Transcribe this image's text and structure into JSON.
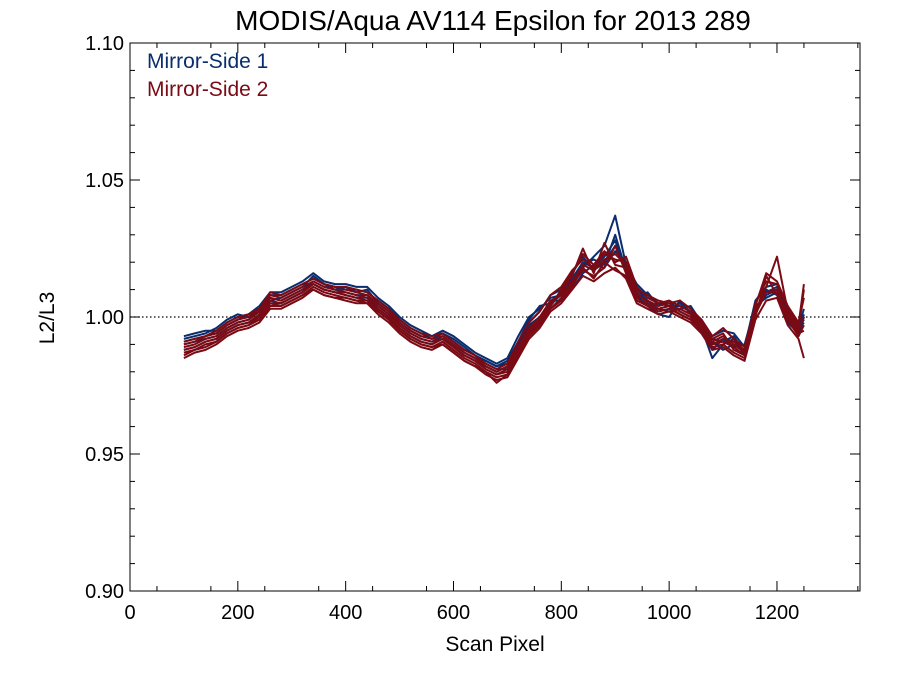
{
  "chart_data": {
    "type": "line",
    "title": "MODIS/Aqua AV114 Epsilon for 2013 289",
    "xlabel": "Scan Pixel",
    "ylabel": "L2/L3",
    "xlim": [
      0,
      1354
    ],
    "ylim": [
      0.9,
      1.1
    ],
    "x_ticks": [
      0,
      200,
      400,
      600,
      800,
      1000,
      1200
    ],
    "x_tick_labels": [
      "0",
      "200",
      "400",
      "600",
      "800",
      "1000",
      "1200"
    ],
    "y_ticks": [
      0.9,
      0.95,
      1.0,
      1.05,
      1.1
    ],
    "y_tick_labels": [
      "0.90",
      "0.95",
      "1.00",
      "1.05",
      "1.10"
    ],
    "reference_line": 1.0,
    "grid": false,
    "legend_position": "top-left",
    "colors": {
      "mirror_side_1": "#0a2d6e",
      "mirror_side_2": "#7a0a14"
    },
    "legend": [
      {
        "label": "Mirror-Side 1",
        "color": "#0a2d6e"
      },
      {
        "label": "Mirror-Side 2",
        "color": "#7a0a14"
      }
    ],
    "x": [
      100,
      120,
      140,
      160,
      180,
      200,
      220,
      240,
      260,
      280,
      300,
      320,
      340,
      360,
      380,
      400,
      420,
      440,
      460,
      480,
      500,
      520,
      540,
      560,
      580,
      600,
      620,
      640,
      660,
      680,
      700,
      720,
      740,
      760,
      780,
      800,
      820,
      840,
      860,
      880,
      900,
      920,
      940,
      960,
      980,
      1000,
      1020,
      1040,
      1060,
      1080,
      1100,
      1120,
      1140,
      1160,
      1180,
      1200,
      1220,
      1240,
      1250
    ],
    "series": [
      {
        "mirror_side": 1,
        "values": [
          0.993,
          0.994,
          0.995,
          0.995,
          0.998,
          1.0,
          1.001,
          1.004,
          1.009,
          1.009,
          1.011,
          1.013,
          1.016,
          1.013,
          1.012,
          1.012,
          1.011,
          1.011,
          1.007,
          1.004,
          1.0,
          0.997,
          0.995,
          0.993,
          0.995,
          0.993,
          0.99,
          0.987,
          0.985,
          0.983,
          0.985,
          0.993,
          1.0,
          1.003,
          1.007,
          1.008,
          1.012,
          1.018,
          1.022,
          1.026,
          1.037,
          1.019,
          1.012,
          1.008,
          1.005,
          1.004,
          1.004,
          1.002,
          0.999,
          0.993,
          0.995,
          0.994,
          0.989,
          1.006,
          1.011,
          1.012,
          1.003,
          0.996,
          1.003
        ]
      },
      {
        "mirror_side": 1,
        "values": [
          0.991,
          0.992,
          0.993,
          0.994,
          0.997,
          0.999,
          1.001,
          1.003,
          1.008,
          1.008,
          1.01,
          1.012,
          1.014,
          1.012,
          1.011,
          1.01,
          1.01,
          1.009,
          1.006,
          1.003,
          0.999,
          0.996,
          0.994,
          0.992,
          0.994,
          0.992,
          0.989,
          0.986,
          0.984,
          0.982,
          0.983,
          0.99,
          0.997,
          1.0,
          1.004,
          1.009,
          1.014,
          1.02,
          1.018,
          1.022,
          1.028,
          1.016,
          1.008,
          1.004,
          1.001,
          1.0,
          1.006,
          1.001,
          0.996,
          0.985,
          0.99,
          0.992,
          0.986,
          1.003,
          1.008,
          1.01,
          1.0,
          0.993,
          1.0
        ]
      },
      {
        "mirror_side": 1,
        "values": [
          0.99,
          0.991,
          0.992,
          0.993,
          0.996,
          0.998,
          0.999,
          1.002,
          1.007,
          1.006,
          1.008,
          1.01,
          1.013,
          1.011,
          1.01,
          1.009,
          1.008,
          1.008,
          1.004,
          1.001,
          0.997,
          0.994,
          0.992,
          0.991,
          0.993,
          0.99,
          0.987,
          0.985,
          0.983,
          0.981,
          0.981,
          0.988,
          0.995,
          0.999,
          1.006,
          1.006,
          1.01,
          1.016,
          1.019,
          1.018,
          1.024,
          1.02,
          1.01,
          1.006,
          1.003,
          1.002,
          1.003,
          1.004,
          0.998,
          0.991,
          0.988,
          0.99,
          0.988,
          1.001,
          1.01,
          1.008,
          1.002,
          0.995,
          0.998
        ]
      },
      {
        "mirror_side": 1,
        "values": [
          0.988,
          0.989,
          0.991,
          0.992,
          0.995,
          0.997,
          0.998,
          1.0,
          1.005,
          1.005,
          1.007,
          1.009,
          1.012,
          1.01,
          1.009,
          1.008,
          1.007,
          1.007,
          1.003,
          1.0,
          0.996,
          0.993,
          0.991,
          0.99,
          0.992,
          0.989,
          0.986,
          0.984,
          0.982,
          0.98,
          0.982,
          0.99,
          0.998,
          1.002,
          1.008,
          1.01,
          1.016,
          1.022,
          1.017,
          1.02,
          1.026,
          1.018,
          1.007,
          1.009,
          1.004,
          1.006,
          1.002,
          1.0,
          0.995,
          0.988,
          0.992,
          0.989,
          0.99,
          1.004,
          1.007,
          1.009,
          0.998,
          0.994,
          1.001
        ]
      },
      {
        "mirror_side": 1,
        "values": [
          0.992,
          0.993,
          0.994,
          0.996,
          0.999,
          1.001,
          1.0,
          1.002,
          1.006,
          1.007,
          1.009,
          1.011,
          1.015,
          1.012,
          1.01,
          1.011,
          1.009,
          1.01,
          1.005,
          1.002,
          0.998,
          0.995,
          0.993,
          0.992,
          0.994,
          0.991,
          0.988,
          0.986,
          0.984,
          0.982,
          0.984,
          0.991,
          0.999,
          1.004,
          1.005,
          1.008,
          1.013,
          1.019,
          1.021,
          1.019,
          1.03,
          1.017,
          1.011,
          1.005,
          1.002,
          1.003,
          1.005,
          1.002,
          0.997,
          0.992,
          0.991,
          0.993,
          0.987,
          1.002,
          1.009,
          1.011,
          1.001,
          0.996,
          0.999
        ]
      },
      {
        "mirror_side": 2,
        "values": [
          0.991,
          0.992,
          0.993,
          0.994,
          0.997,
          0.999,
          1.0,
          1.003,
          1.008,
          1.007,
          1.009,
          1.011,
          1.013,
          1.011,
          1.01,
          1.01,
          1.009,
          1.008,
          1.005,
          1.002,
          0.998,
          0.995,
          0.993,
          0.992,
          0.993,
          0.99,
          0.987,
          0.985,
          0.982,
          0.98,
          0.982,
          0.989,
          0.996,
          1.0,
          1.006,
          1.008,
          1.013,
          1.019,
          1.017,
          1.021,
          1.023,
          1.019,
          1.009,
          1.005,
          1.003,
          1.004,
          1.003,
          1.001,
          0.997,
          0.99,
          0.992,
          0.991,
          0.988,
          1.003,
          1.009,
          1.01,
          1.001,
          0.995,
          1.0
        ]
      },
      {
        "mirror_side": 2,
        "values": [
          0.989,
          0.99,
          0.992,
          0.993,
          0.996,
          0.998,
          0.999,
          1.002,
          1.007,
          1.006,
          1.008,
          1.01,
          1.012,
          1.01,
          1.009,
          1.009,
          1.008,
          1.007,
          1.004,
          1.001,
          0.997,
          0.994,
          0.992,
          0.991,
          0.992,
          0.989,
          0.986,
          0.984,
          0.981,
          0.979,
          0.98,
          0.987,
          0.994,
          0.998,
          1.004,
          1.01,
          1.016,
          1.023,
          1.019,
          1.024,
          1.02,
          1.022,
          1.011,
          1.007,
          1.005,
          1.006,
          1.004,
          1.002,
          0.998,
          0.992,
          0.994,
          0.988,
          0.986,
          1.005,
          1.013,
          1.012,
          1.003,
          0.997,
          1.012
        ]
      },
      {
        "mirror_side": 2,
        "values": [
          0.987,
          0.988,
          0.99,
          0.991,
          0.994,
          0.996,
          0.997,
          1.0,
          1.005,
          1.004,
          1.006,
          1.008,
          1.011,
          1.009,
          1.008,
          1.007,
          1.006,
          1.006,
          1.002,
          0.999,
          0.995,
          0.992,
          0.99,
          0.989,
          0.991,
          0.988,
          0.985,
          0.983,
          0.98,
          0.978,
          0.979,
          0.986,
          0.993,
          0.997,
          1.003,
          1.007,
          1.012,
          1.017,
          1.015,
          1.018,
          1.026,
          1.016,
          1.006,
          1.004,
          1.002,
          1.003,
          1.001,
          0.999,
          0.995,
          0.989,
          0.99,
          0.987,
          0.985,
          1.0,
          1.015,
          1.008,
          0.999,
          0.993,
          0.997
        ]
      },
      {
        "mirror_side": 2,
        "values": [
          0.985,
          0.987,
          0.988,
          0.99,
          0.993,
          0.995,
          0.996,
          0.998,
          1.003,
          1.003,
          1.005,
          1.007,
          1.01,
          1.008,
          1.007,
          1.006,
          1.005,
          1.005,
          1.001,
          0.998,
          0.994,
          0.991,
          0.989,
          0.988,
          0.99,
          0.987,
          0.984,
          0.982,
          0.979,
          0.977,
          0.978,
          0.985,
          0.992,
          0.996,
          1.002,
          1.005,
          1.01,
          1.015,
          1.013,
          1.016,
          1.018,
          1.014,
          1.005,
          1.003,
          1.001,
          1.002,
          1.0,
          0.998,
          0.994,
          0.988,
          0.989,
          0.986,
          0.984,
          0.999,
          1.006,
          1.007,
          0.997,
          0.992,
          0.985
        ]
      },
      {
        "mirror_side": 2,
        "values": [
          0.99,
          0.991,
          0.993,
          0.995,
          0.998,
          1.0,
          1.001,
          1.003,
          1.009,
          1.008,
          1.01,
          1.012,
          1.014,
          1.012,
          1.011,
          1.011,
          1.01,
          1.009,
          1.006,
          1.003,
          0.999,
          0.996,
          0.994,
          0.993,
          0.994,
          0.991,
          0.988,
          0.986,
          0.983,
          0.981,
          0.983,
          0.991,
          0.998,
          1.002,
          1.008,
          1.011,
          1.017,
          1.021,
          1.018,
          1.023,
          1.021,
          1.02,
          1.01,
          1.008,
          1.006,
          1.005,
          1.006,
          1.003,
          0.999,
          0.993,
          0.996,
          0.992,
          0.989,
          1.004,
          1.016,
          1.013,
          1.004,
          0.998,
          1.007
        ]
      },
      {
        "mirror_side": 2,
        "values": [
          0.988,
          0.989,
          0.991,
          0.992,
          0.995,
          0.997,
          0.998,
          1.001,
          1.006,
          1.005,
          1.007,
          1.009,
          1.012,
          1.01,
          1.009,
          1.008,
          1.007,
          1.006,
          1.003,
          1.0,
          0.996,
          0.993,
          0.991,
          0.99,
          0.992,
          0.989,
          0.986,
          0.984,
          0.981,
          0.979,
          0.981,
          0.988,
          0.995,
          0.999,
          1.005,
          1.009,
          1.015,
          1.025,
          1.016,
          1.027,
          1.019,
          1.018,
          1.008,
          1.006,
          1.004,
          1.005,
          1.002,
          1.0,
          0.996,
          0.991,
          0.993,
          0.99,
          0.987,
          1.002,
          1.011,
          1.022,
          1.002,
          0.996,
          1.01
        ]
      },
      {
        "mirror_side": 2,
        "values": [
          0.986,
          0.988,
          0.989,
          0.991,
          0.994,
          0.996,
          0.997,
          0.999,
          1.004,
          1.004,
          1.006,
          1.008,
          1.01,
          1.008,
          1.007,
          1.007,
          1.006,
          1.005,
          1.002,
          0.999,
          0.995,
          0.992,
          0.99,
          0.989,
          0.99,
          0.987,
          0.984,
          0.982,
          0.98,
          0.976,
          0.979,
          0.987,
          0.994,
          0.998,
          1.003,
          1.006,
          1.011,
          1.018,
          1.014,
          1.02,
          1.017,
          1.015,
          1.007,
          1.004,
          1.003,
          1.004,
          1.001,
          0.999,
          0.995,
          0.99,
          0.991,
          0.989,
          0.986,
          1.001,
          1.009,
          1.009,
          1.0,
          0.994,
          0.995
        ]
      }
    ]
  }
}
